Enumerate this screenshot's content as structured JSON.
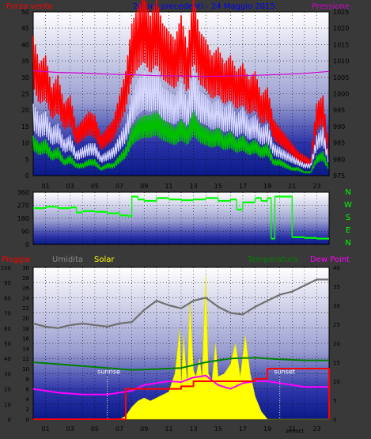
{
  "colors": {
    "background": "#393939",
    "wind": "#ff0000",
    "gust": "#ff0000",
    "wind_avg": "#d8d8ff",
    "wind_low": "#00c000",
    "pressure": "#d000d0",
    "humidity": "#707070",
    "solar": "#ffff00",
    "temperature": "#008000",
    "dewpoint": "#ff00ff",
    "rain": "#ff0000",
    "direction": "#00ff00",
    "title": "#0000ff",
    "text_light": "#000000"
  },
  "top_panel": {
    "left_label": "Forza vento",
    "title": "24 ore precedenti - 24 Maggio 2015",
    "right_label": "Pressione",
    "left_ticks": [
      "0",
      "5",
      "10",
      "15",
      "20",
      "25",
      "30",
      "35",
      "40",
      "45",
      "50"
    ],
    "right_ticks": [
      "975",
      "980",
      "985",
      "990",
      "995",
      "1000",
      "1005",
      "1010",
      "1015",
      "1020",
      "1025"
    ]
  },
  "mid_panel": {
    "left_ticks": [
      "0",
      "90",
      "180",
      "270",
      "360"
    ],
    "compass": [
      "N",
      "W",
      "S",
      "E",
      "N"
    ]
  },
  "bottom_panel": {
    "label_rain": "Pioggia",
    "label_humidity": "Umidita",
    "label_solar": "Solar",
    "label_temperature": "Temperatura",
    "label_dewpoint": "Dew Point",
    "hum_ticks": [
      "0",
      "10",
      "20",
      "30",
      "40",
      "50",
      "60",
      "70",
      "80",
      "90",
      "100"
    ],
    "rain_ticks": [
      "0",
      "2",
      "4",
      "6",
      "8",
      "10",
      "12",
      "14",
      "16",
      "18",
      "20",
      "22",
      "24",
      "26",
      "28",
      "30"
    ],
    "temp_ticks": [
      "0",
      "5",
      "10",
      "15",
      "20",
      "25",
      "30",
      "35",
      "40"
    ],
    "sunrise": "sunrise",
    "sunset": "sunset",
    "sunset_tick": "sunset"
  },
  "x_ticks": [
    "01",
    "03",
    "05",
    "07",
    "09",
    "11",
    "13",
    "15",
    "17",
    "19",
    "21",
    "23"
  ],
  "chart_data": [
    {
      "type": "line",
      "title": "24 ore precedenti - 24 Maggio 2015",
      "x_unit": "hour",
      "xlim": [
        0,
        24
      ],
      "y_left": {
        "label": "Forza vento",
        "ylim": [
          0,
          50
        ]
      },
      "y_right": {
        "label": "Pressione",
        "ylim": [
          975,
          1025
        ]
      },
      "series": [
        {
          "name": "Forza vento",
          "axis": "left",
          "color": "#ff0000",
          "style": "gust",
          "x": [
            0,
            0.5,
            1,
            1.5,
            2,
            2.5,
            3,
            3.5,
            4,
            4.5,
            5,
            5.5,
            6,
            6.5,
            7,
            7.5,
            8,
            8.5,
            9,
            9.5,
            10,
            10.5,
            11,
            11.5,
            12,
            12.5,
            13,
            13.5,
            14,
            14.5,
            15,
            15.5,
            16,
            16.5,
            17,
            17.5,
            18,
            18.5,
            19,
            19.5,
            20,
            20.5,
            21,
            21.5,
            22,
            22.5,
            23,
            23.5,
            24
          ],
          "values": [
            35,
            28,
            30,
            22,
            25,
            18,
            20,
            12,
            14,
            16,
            15,
            10,
            12,
            14,
            20,
            26,
            38,
            42,
            45,
            40,
            44,
            38,
            36,
            34,
            40,
            32,
            45,
            36,
            34,
            30,
            32,
            28,
            30,
            26,
            28,
            24,
            26,
            20,
            22,
            14,
            12,
            10,
            8,
            6,
            5,
            4,
            18,
            20,
            6
          ]
        },
        {
          "name": "",
          "axis": "left",
          "color": "#d8d8ff",
          "style": "average",
          "x": [
            0,
            0.5,
            1,
            1.5,
            2,
            2.5,
            3,
            3.5,
            4,
            4.5,
            5,
            5.5,
            6,
            6.5,
            7,
            7.5,
            8,
            8.5,
            9,
            9.5,
            10,
            10.5,
            11,
            11.5,
            12,
            12.5,
            13,
            13.5,
            14,
            14.5,
            15,
            15.5,
            16,
            16.5,
            17,
            17.5,
            18,
            18.5,
            19,
            19.5,
            20,
            20.5,
            21,
            21.5,
            22,
            22.5,
            23,
            23.5,
            24
          ],
          "values": [
            18,
            15,
            16,
            12,
            13,
            9,
            10,
            6,
            7,
            8,
            8,
            5,
            6,
            7,
            10,
            13,
            20,
            24,
            26,
            25,
            26,
            22,
            21,
            20,
            23,
            19,
            26,
            21,
            20,
            18,
            19,
            17,
            18,
            15,
            17,
            14,
            15,
            12,
            13,
            8,
            7,
            6,
            5,
            4,
            3,
            3,
            10,
            12,
            4
          ]
        },
        {
          "name": "",
          "axis": "left",
          "color": "#00c000",
          "style": "lull",
          "x": [
            0,
            0.5,
            1,
            1.5,
            2,
            2.5,
            3,
            3.5,
            4,
            4.5,
            5,
            5.5,
            6,
            6.5,
            7,
            7.5,
            8,
            8.5,
            9,
            9.5,
            10,
            10.5,
            11,
            11.5,
            12,
            12.5,
            13,
            13.5,
            14,
            14.5,
            15,
            15.5,
            16,
            16.5,
            17,
            17.5,
            18,
            18.5,
            19,
            19.5,
            20,
            20.5,
            21,
            21.5,
            22,
            22.5,
            23,
            23.5,
            24
          ],
          "values": [
            10,
            8,
            9,
            6,
            7,
            4,
            5,
            3,
            3,
            4,
            4,
            2,
            3,
            3,
            5,
            7,
            12,
            14,
            15,
            15,
            16,
            14,
            13,
            12,
            14,
            12,
            16,
            13,
            12,
            11,
            12,
            10,
            11,
            9,
            10,
            8,
            9,
            7,
            8,
            4,
            4,
            3,
            2,
            2,
            1,
            1,
            5,
            6,
            2
          ]
        },
        {
          "name": "Pressione",
          "axis": "right",
          "color": "#d000d0",
          "x": [
            0,
            2,
            4,
            6,
            8,
            10,
            12,
            14,
            16,
            18,
            20,
            22,
            24
          ],
          "values": [
            1007,
            1006.5,
            1006.3,
            1006,
            1005.8,
            1005.5,
            1005.4,
            1005.3,
            1005.4,
            1005.6,
            1005.9,
            1006.2,
            1006.8
          ]
        }
      ]
    },
    {
      "type": "scatter",
      "x_unit": "hour",
      "xlim": [
        0,
        24
      ],
      "ylim": [
        0,
        360
      ],
      "series": [
        {
          "name": "",
          "color": "#00ff00",
          "x": [
            0,
            1,
            2,
            3,
            3.5,
            4,
            5,
            6,
            7,
            7.7,
            8,
            8.5,
            9,
            10,
            11,
            12,
            13,
            14,
            15,
            16,
            16.5,
            17,
            18,
            18.5,
            19,
            19.3,
            19.6,
            20,
            21,
            22,
            23,
            24
          ],
          "values": [
            250,
            260,
            250,
            255,
            220,
            230,
            225,
            215,
            200,
            195,
            330,
            310,
            300,
            320,
            310,
            305,
            310,
            320,
            300,
            310,
            240,
            290,
            320,
            300,
            320,
            40,
            330,
            330,
            50,
            45,
            40,
            40
          ]
        }
      ]
    },
    {
      "type": "line",
      "x_unit": "hour",
      "xlim": [
        0,
        24
      ],
      "y_left_humidity": {
        "label": "Umidita",
        "ylim": [
          0,
          100
        ]
      },
      "y_left_rain": {
        "label": "Pioggia",
        "ylim": [
          0,
          30
        ]
      },
      "y_right": {
        "label": "Temperatura",
        "ylim": [
          0,
          40
        ]
      },
      "series": [
        {
          "name": "Umidita",
          "axis": "humidity",
          "color": "#707070",
          "x": [
            0,
            1,
            2,
            3,
            4,
            5,
            6,
            7,
            8,
            9,
            10,
            11,
            12,
            13,
            14,
            15,
            16,
            17,
            18,
            19,
            20,
            21,
            22,
            23,
            24
          ],
          "values": [
            63,
            61,
            60,
            62,
            63,
            62,
            61,
            63,
            64,
            72,
            78,
            75,
            73,
            78,
            80,
            74,
            70,
            69,
            74,
            78,
            82,
            84,
            88,
            92,
            92
          ]
        },
        {
          "name": "Solar",
          "axis": "solar",
          "color": "#ffff00",
          "x": [
            0,
            6.5,
            7,
            7.5,
            8,
            8.5,
            9,
            9.5,
            10,
            10.5,
            11,
            11.5,
            11.9,
            12,
            12.2,
            12.5,
            12.7,
            13,
            13.2,
            13.5,
            13.7,
            14,
            14.2,
            14.5,
            14.8,
            15,
            15.5,
            16,
            16.4,
            16.8,
            17.2,
            17.6,
            18,
            18.5,
            19,
            24
          ],
          "values": [
            0,
            0,
            0,
            2,
            8,
            12,
            14,
            12,
            14,
            16,
            18,
            30,
            60,
            20,
            55,
            22,
            78,
            32,
            28,
            40,
            26,
            95,
            30,
            25,
            50,
            28,
            30,
            36,
            50,
            28,
            55,
            30,
            15,
            5,
            0,
            0
          ]
        },
        {
          "name": "Temperatura",
          "axis": "temperature",
          "color": "#008000",
          "x": [
            0,
            2,
            4,
            6,
            8,
            10,
            12,
            14,
            16,
            18,
            20,
            22,
            24
          ],
          "values": [
            15,
            14.5,
            14,
            13.5,
            13,
            13.2,
            13.5,
            15,
            16,
            16.2,
            15.8,
            15.5,
            15.5
          ]
        },
        {
          "name": "Dew Point",
          "axis": "temperature",
          "color": "#ff00ff",
          "x": [
            0,
            2,
            4,
            6,
            7,
            8,
            9,
            10,
            11,
            12,
            13,
            14,
            15,
            16,
            17,
            18,
            19,
            20,
            21,
            22,
            23,
            24
          ],
          "values": [
            8,
            7,
            6.5,
            6.5,
            7,
            7.5,
            9,
            9.5,
            10,
            9.8,
            11,
            11.5,
            9,
            8,
            9.5,
            10,
            10,
            9.5,
            9,
            8.5,
            8.5,
            8.5
          ]
        },
        {
          "name": "Pioggia",
          "axis": "rain",
          "color": "#ff0000",
          "style": "step",
          "x": [
            0,
            7,
            7.5,
            12,
            13,
            17,
            18,
            19,
            23.5,
            24
          ],
          "values": [
            0,
            0,
            6,
            6.5,
            7.5,
            7.5,
            8,
            10,
            10,
            0
          ]
        }
      ],
      "annotations": [
        {
          "text": "sunrise",
          "x": 6
        },
        {
          "text": "sunset",
          "x": 20
        }
      ]
    }
  ]
}
